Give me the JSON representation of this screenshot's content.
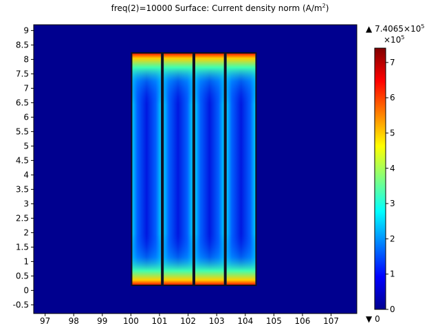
{
  "chart_data": {
    "type": "heatmap",
    "title_prefix": "freq(2)=10000   Surface: Current density norm (A/m",
    "title_sup": "2",
    "title_suffix": ")",
    "xlim": [
      96.6,
      107.9
    ],
    "ylim": [
      -0.8,
      9.2
    ],
    "xticks": [
      97,
      98,
      99,
      100,
      101,
      102,
      103,
      104,
      105,
      106,
      107
    ],
    "yticks": [
      -0.5,
      0,
      0.5,
      1,
      1.5,
      2,
      2.5,
      3,
      3.5,
      4,
      4.5,
      5,
      5.5,
      6,
      6.5,
      7,
      7.5,
      8,
      8.5,
      9
    ],
    "background_value": 0,
    "conductors": [
      {
        "x": [
          100.05,
          101.05
        ],
        "y": [
          0.2,
          8.2
        ]
      },
      {
        "x": [
          101.15,
          102.15
        ],
        "y": [
          0.2,
          8.2
        ]
      },
      {
        "x": [
          102.25,
          103.25
        ],
        "y": [
          0.2,
          8.2
        ]
      },
      {
        "x": [
          103.35,
          104.35
        ],
        "y": [
          0.2,
          8.2
        ]
      }
    ],
    "bundle_outline": {
      "x": [
        100.0,
        104.4
      ],
      "y": [
        0.15,
        8.25
      ]
    },
    "colorbar": {
      "min": 0,
      "max_label": "7.4065×10",
      "max_sup": "5",
      "scale_label": "×10",
      "scale_sup": "5",
      "min_label": "0",
      "max_marker": "▲",
      "min_marker": "▼",
      "ticks": [
        0,
        1,
        2,
        3,
        4,
        5,
        6,
        7
      ],
      "range": [
        0,
        7.4065
      ]
    },
    "colormap": [
      "#00008f",
      "#0000ff",
      "#0080ff",
      "#00ffff",
      "#80ff80",
      "#ffff00",
      "#ff8000",
      "#ff0000",
      "#800000"
    ]
  }
}
